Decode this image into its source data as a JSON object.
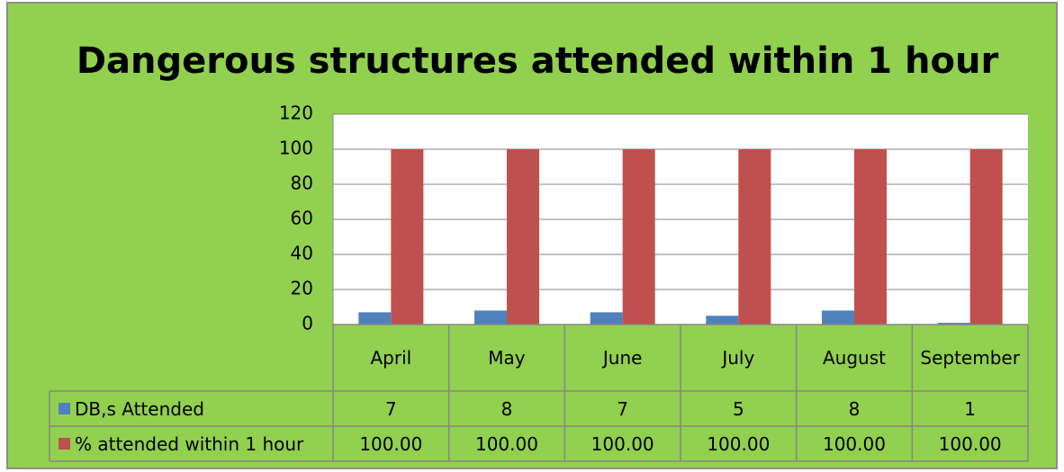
{
  "chart_data": {
    "type": "bar",
    "title": "Dangerous structures attended within 1 hour",
    "categories": [
      "April",
      "May",
      "June",
      "July",
      "August",
      "September"
    ],
    "series": [
      {
        "name": "DB,s Attended",
        "color": "#4f81bd",
        "values": [
          7,
          8,
          7,
          5,
          8,
          1
        ]
      },
      {
        "name": "% attended within 1 hour",
        "color": "#c0504d",
        "values": [
          100,
          100,
          100,
          100,
          100,
          100
        ],
        "value_labels": [
          "100.00",
          "100.00",
          "100.00",
          "100.00",
          "100.00",
          "100.00"
        ]
      }
    ],
    "ylim": [
      0,
      120
    ],
    "yticks": [
      0,
      20,
      40,
      60,
      80,
      100,
      120
    ],
    "grid": true,
    "data_table": true
  }
}
